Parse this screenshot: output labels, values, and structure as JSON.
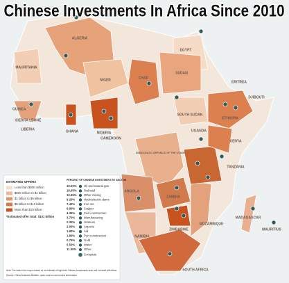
{
  "title": "Chinese Investments In Africa Since 2010",
  "map": {
    "countries": [
      "ALGERIA",
      "EGYPT",
      "MAURITANIA",
      "NIGER",
      "CHAD",
      "SUDAN",
      "ERITREA",
      "DJIBOUTI",
      "ETHIOPIA",
      "SOUTH SUDAN",
      "GUINEA",
      "SIERRA LEONE",
      "LIBERIA",
      "GHANA",
      "NIGERIA",
      "CAMEROON",
      "DEMOCRATIC REPUBLIC OF THE CONGO",
      "UGANDA",
      "KENYA",
      "TANZANIA",
      "ANGOLA",
      "ZAMBIA",
      "ZIMBABWE",
      "MOZAMBIQUE",
      "NAMIBIA",
      "MADAGASCAR",
      "MAURITIUS",
      "SOUTH AFRICA"
    ]
  },
  "legend": {
    "offers_title": "ESTIMATED OFFERS",
    "offers": [
      "Less than $500 million",
      "$500 million to $1 billion",
      "$1 billion to $5 billion",
      "$5 billion to $10 billion",
      "More than $10 billion"
    ],
    "offers_total": "*Estimated offer total: $101 billion",
    "sectors_title": "PERCENT OF CHINESE INVESTMENT BY SECTOR",
    "sectors": [
      [
        "19.00%",
        "Oil and natural gas"
      ],
      [
        "18.65%",
        "Railroad"
      ],
      [
        "10.65%",
        "Other mining"
      ],
      [
        "9.20%",
        "Hydroelectric dams"
      ],
      [
        "7.40%",
        "Iron ore"
      ],
      [
        "6.90%",
        "Copper"
      ],
      [
        "4.35%",
        "Civil construction"
      ],
      [
        "3.70%",
        "Manufacturing"
      ],
      [
        "2.30%",
        "Uranium"
      ],
      [
        "2.00%",
        "Airports"
      ],
      [
        "1.90%",
        "Aid"
      ],
      [
        "1.80%",
        "Port construction"
      ],
      [
        "0.75%",
        "Gold"
      ],
      [
        "0.50%",
        "Water"
      ],
      [
        "11.00%",
        "Other"
      ]
    ],
    "complete": "Complete",
    "note": "Note: The data in this map is based on an estimate of high-level Chinese investments seen and not dealt with Africa.",
    "source": "Source: China Business Bulletin; open-source commercial information"
  }
}
